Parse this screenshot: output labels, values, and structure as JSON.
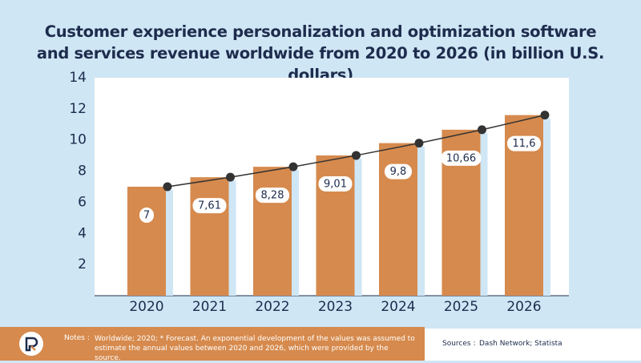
{
  "chart_data": {
    "type": "bar",
    "title": "Customer experience personalization and optimization software and services revenue worldwide from 2020 to 2026 (in billion U.S. dollars)",
    "categories": [
      "2020",
      "2021",
      "2022",
      "2023",
      "2024",
      "2025",
      "2026"
    ],
    "values": [
      7,
      7.61,
      8.28,
      9.01,
      9.8,
      10.66,
      11.6
    ],
    "value_labels": [
      "7",
      "7,61",
      "8,28",
      "9,01",
      "9,8",
      "10,66",
      "11,6"
    ],
    "color": "#d68a4d",
    "line_color": "#333333",
    "ylim": [
      0,
      14
    ],
    "yticks": [
      2,
      4,
      6,
      8,
      10,
      12,
      14
    ],
    "notes_label": "Notes :",
    "notes": "Worldwide; 2020; * Forecast. An exponential development of the values was assumed to estimate the annual values between 2020 and 2026, which were provided by the source.",
    "sources_label": "Sources :",
    "sources": "Dash Network; Statista"
  }
}
